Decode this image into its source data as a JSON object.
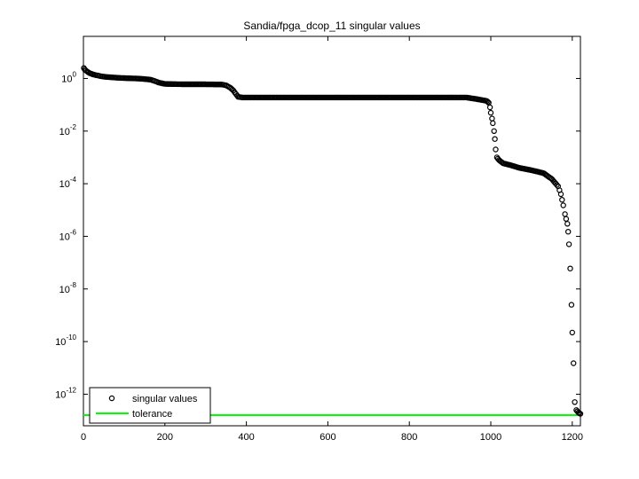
{
  "chart_data": {
    "type": "scatter",
    "title": "Sandia/fpga_dcop_11 singular values",
    "xlabel": "",
    "ylabel": "",
    "xlim": [
      0,
      1220
    ],
    "ylim_log10": [
      -13.2,
      1.6
    ],
    "y_scale": "log",
    "grid": false,
    "legend_position": "bottom-left",
    "x_ticks": [
      {
        "value": 0,
        "label": "0"
      },
      {
        "value": 200,
        "label": "200"
      },
      {
        "value": 400,
        "label": "400"
      },
      {
        "value": 600,
        "label": "600"
      },
      {
        "value": 800,
        "label": "800"
      },
      {
        "value": 1000,
        "label": "1000"
      },
      {
        "value": 1200,
        "label": "1200"
      }
    ],
    "y_ticks": [
      {
        "exp": 0,
        "base": "10",
        "sup": "0"
      },
      {
        "exp": -2,
        "base": "10",
        "sup": "-2"
      },
      {
        "exp": -4,
        "base": "10",
        "sup": "-4"
      },
      {
        "exp": -6,
        "base": "10",
        "sup": "-6"
      },
      {
        "exp": -8,
        "base": "10",
        "sup": "-8"
      },
      {
        "exp": -10,
        "base": "10",
        "sup": "-10"
      },
      {
        "exp": -12,
        "base": "10",
        "sup": "-12"
      }
    ],
    "series": [
      {
        "name": "singular values",
        "marker": "circle",
        "color": "#000000",
        "points": [
          [
            1,
            2.5
          ],
          [
            3,
            2.2
          ],
          [
            6,
            2.0
          ],
          [
            10,
            1.8
          ],
          [
            15,
            1.6
          ],
          [
            20,
            1.5
          ],
          [
            25,
            1.4
          ],
          [
            35,
            1.3
          ],
          [
            45,
            1.2
          ],
          [
            55,
            1.15
          ],
          [
            70,
            1.1
          ],
          [
            90,
            1.05
          ],
          [
            110,
            1.02
          ],
          [
            130,
            1.0
          ],
          [
            150,
            0.95
          ],
          [
            165,
            0.9
          ],
          [
            175,
            0.8
          ],
          [
            185,
            0.7
          ],
          [
            200,
            0.62
          ],
          [
            250,
            0.6
          ],
          [
            300,
            0.6
          ],
          [
            340,
            0.59
          ],
          [
            350,
            0.55
          ],
          [
            360,
            0.45
          ],
          [
            368,
            0.35
          ],
          [
            375,
            0.25
          ],
          [
            380,
            0.2
          ],
          [
            390,
            0.19
          ],
          [
            450,
            0.19
          ],
          [
            500,
            0.19
          ],
          [
            600,
            0.19
          ],
          [
            700,
            0.19
          ],
          [
            800,
            0.19
          ],
          [
            900,
            0.19
          ],
          [
            940,
            0.19
          ],
          [
            960,
            0.17
          ],
          [
            980,
            0.15
          ],
          [
            990,
            0.14
          ],
          [
            995,
            0.12
          ],
          [
            998,
            0.08
          ],
          [
            1000,
            0.05
          ],
          [
            1003,
            0.03
          ],
          [
            1005,
            0.02
          ],
          [
            1008,
            0.01
          ],
          [
            1010,
            0.005
          ],
          [
            1012,
            0.002
          ],
          [
            1015,
            0.001
          ],
          [
            1020,
            0.0008
          ],
          [
            1030,
            0.0006
          ],
          [
            1050,
            0.0005
          ],
          [
            1070,
            0.0004
          ],
          [
            1090,
            0.00035
          ],
          [
            1110,
            0.0003
          ],
          [
            1130,
            0.00025
          ],
          [
            1150,
            0.00015
          ],
          [
            1165,
            8e-05
          ],
          [
            1172,
            4e-05
          ],
          [
            1178,
            1.5e-05
          ],
          [
            1182,
            7e-06
          ],
          [
            1188,
            3e-06
          ],
          [
            1190,
            1.5e-06
          ],
          [
            1192,
            5e-07
          ],
          [
            1195,
            6e-08
          ],
          [
            1198,
            2.5e-09
          ],
          [
            1200,
            2.2e-10
          ],
          [
            1203,
            1.5e-11
          ],
          [
            1206,
            5e-13
          ],
          [
            1210,
            2.5e-13
          ],
          [
            1215,
            2e-13
          ],
          [
            1220,
            1.8e-13
          ]
        ]
      },
      {
        "name": "tolerance",
        "marker": "line",
        "color": "#00ff00",
        "value": 1.6e-13
      }
    ]
  }
}
